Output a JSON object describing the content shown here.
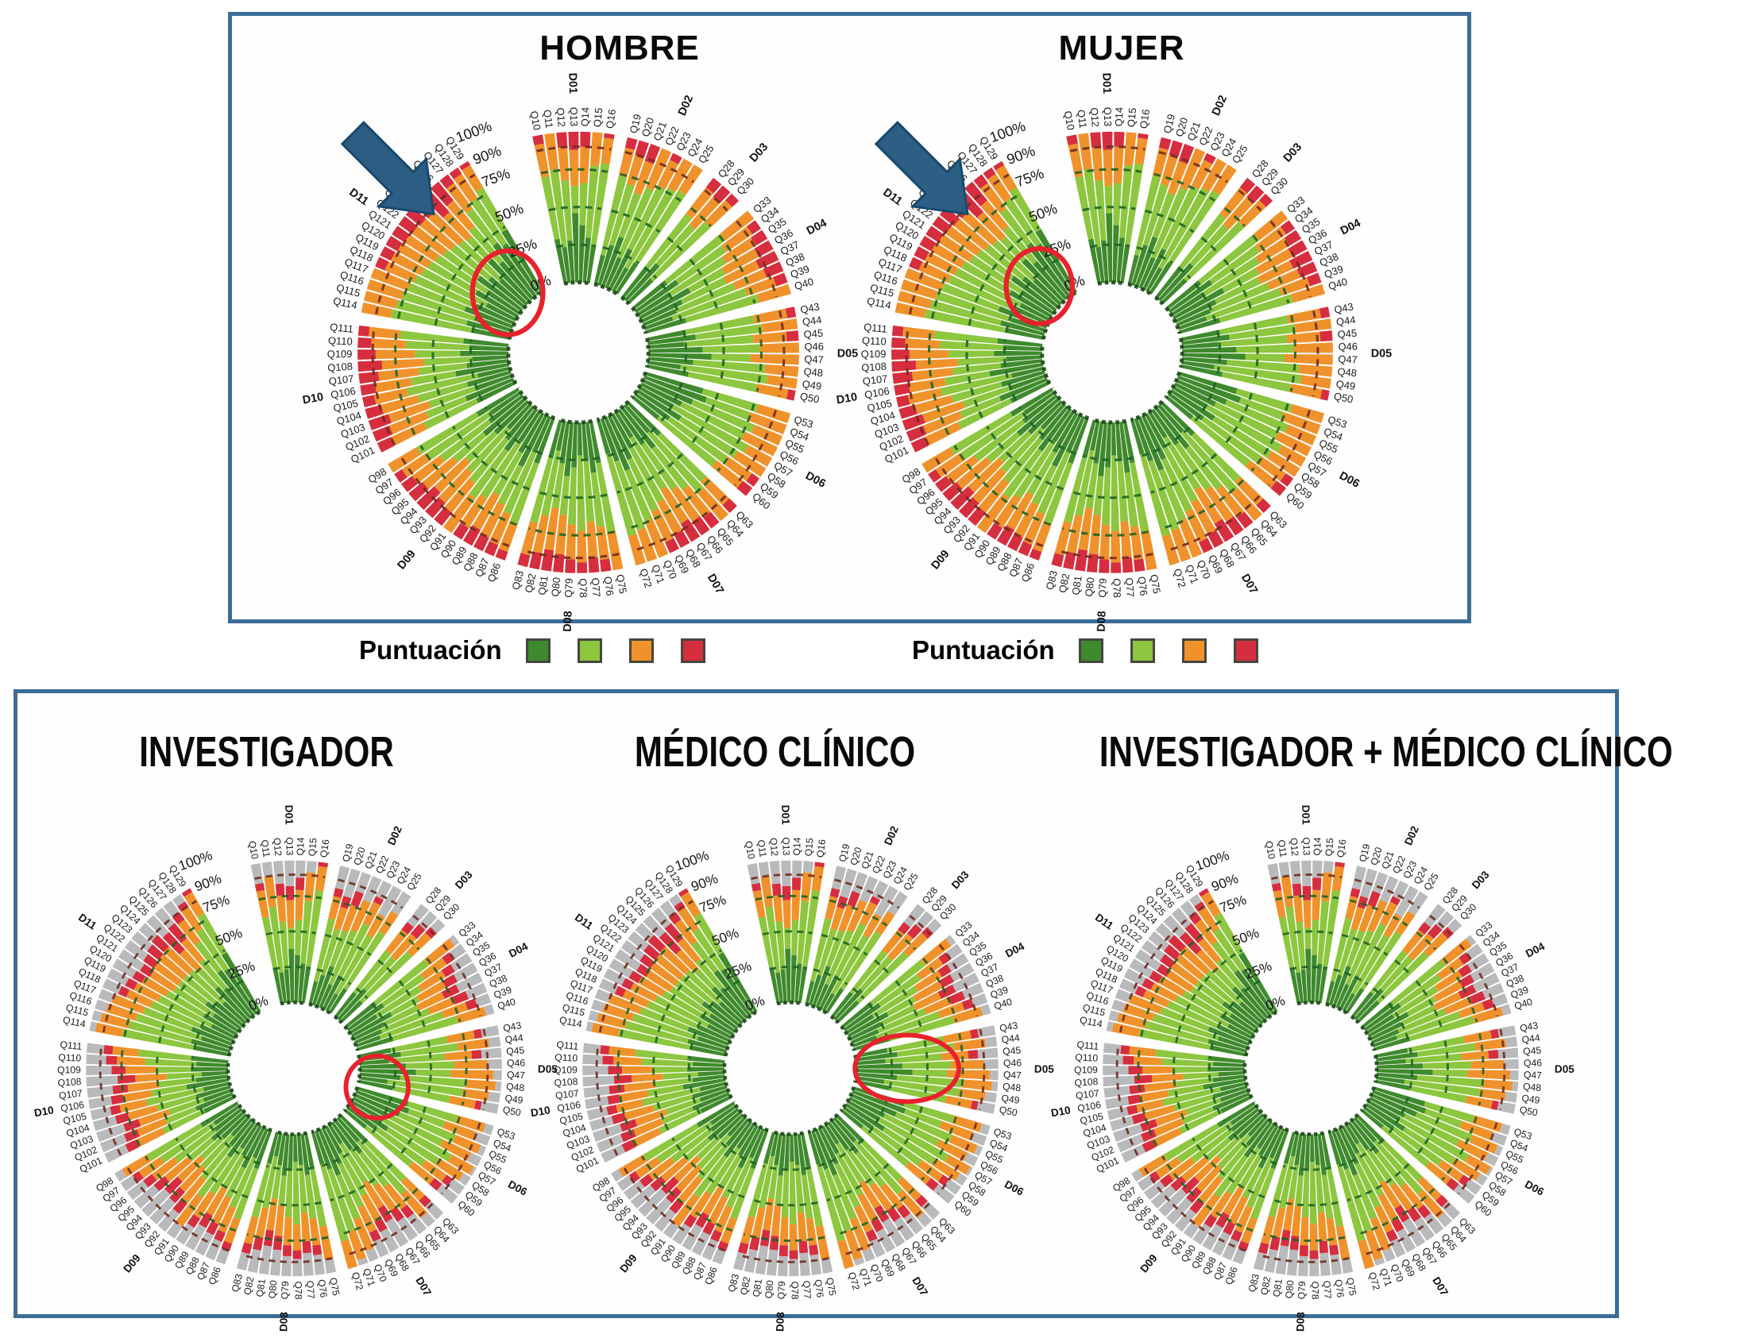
{
  "legend": {
    "label": "Puntuación"
  },
  "chart_data": {
    "type": "radial-stacked-bar",
    "ring_tick_labels": [
      "100%",
      "90%",
      "75%",
      "50%",
      "25%",
      "0%"
    ],
    "ring_gridlines_pct": [
      0,
      25,
      50,
      75,
      90
    ],
    "score_categories": [
      "score-1-dark-green",
      "score-2-light-green",
      "score-3-orange",
      "score-4-red"
    ],
    "palette": {
      "scores": [
        "#3f8a2d",
        "#8dc63f",
        "#f0922b",
        "#d62e3e"
      ],
      "gray": "#b9babc",
      "grid_green": "#1e6423",
      "grid_maroon": "#6f2d1f",
      "grid_base": "#1c4419",
      "annotation_red": "#e8222d",
      "arrow_blue": "#2c5d83",
      "arrow_stroke": "#17496e",
      "panel_border": "#3c6d96"
    },
    "domains": [
      {
        "id": "D01",
        "questions": [
          "Q10",
          "Q11",
          "Q12",
          "Q13",
          "Q14",
          "Q15",
          "Q16"
        ]
      },
      {
        "id": "D02",
        "questions": [
          "Q19",
          "Q20",
          "Q21",
          "Q22",
          "Q23",
          "Q24",
          "Q25"
        ]
      },
      {
        "id": "D03",
        "questions": [
          "Q28",
          "Q29",
          "Q30"
        ]
      },
      {
        "id": "D04",
        "questions": [
          "Q33",
          "Q34",
          "Q35",
          "Q36",
          "Q37",
          "Q38",
          "Q39",
          "Q40"
        ]
      },
      {
        "id": "D05",
        "questions": [
          "Q43",
          "Q44",
          "Q45",
          "Q46",
          "Q47",
          "Q48",
          "Q49",
          "Q50"
        ]
      },
      {
        "id": "D06",
        "questions": [
          "Q53",
          "Q54",
          "Q55",
          "Q56",
          "Q57",
          "Q58",
          "Q59",
          "Q60"
        ]
      },
      {
        "id": "D07",
        "questions": [
          "Q63",
          "Q64",
          "Q65",
          "Q66",
          "Q67",
          "Q68",
          "Q69",
          "Q70",
          "Q71",
          "Q72"
        ]
      },
      {
        "id": "D08",
        "questions": [
          "Q75",
          "Q76",
          "Q77",
          "Q78",
          "Q79",
          "Q80",
          "Q81",
          "Q82",
          "Q83"
        ]
      },
      {
        "id": "D09",
        "questions": [
          "Q86",
          "Q87",
          "Q88",
          "Q89",
          "Q90",
          "Q91",
          "Q92",
          "Q93",
          "Q94",
          "Q95",
          "Q96",
          "Q97",
          "Q98"
        ]
      },
      {
        "id": "D10",
        "questions": [
          "Q101",
          "Q102",
          "Q103",
          "Q104",
          "Q105",
          "Q106",
          "Q107",
          "Q108",
          "Q109",
          "Q110",
          "Q111"
        ]
      },
      {
        "id": "D11",
        "questions": [
          "Q114",
          "Q115",
          "Q116",
          "Q117",
          "Q118",
          "Q119",
          "Q120",
          "Q121",
          "Q122",
          "Q123",
          "Q124",
          "Q125",
          "Q126",
          "Q127",
          "Q128",
          "Q129"
        ]
      }
    ],
    "bar_values_columns": [
      "dark_green_end_pct",
      "light_green_end_pct",
      "orange_end_pct",
      "has_red_cap",
      "colored_end_pct_bottom_panel"
    ],
    "bar_values": {
      "D01": [
        [
          30,
          72,
          94,
          1,
          86
        ],
        [
          24,
          76,
          92,
          0,
          90
        ],
        [
          28,
          68,
          90,
          1,
          84
        ],
        [
          46,
          64,
          88,
          1,
          82
        ],
        [
          38,
          66,
          90,
          1,
          88
        ],
        [
          30,
          78,
          96,
          0,
          92
        ],
        [
          26,
          80,
          97,
          1,
          100
        ]
      ],
      "D02": [
        [
          20,
          74,
          93,
          1,
          84
        ],
        [
          28,
          70,
          90,
          1,
          80
        ],
        [
          35,
          66,
          88,
          1,
          86
        ],
        [
          22,
          72,
          92,
          0,
          82
        ],
        [
          30,
          76,
          95,
          1,
          88
        ],
        [
          18,
          78,
          96,
          0,
          78
        ],
        [
          24,
          80,
          97,
          0,
          84
        ]
      ],
      "D03": [
        [
          26,
          70,
          92,
          1,
          84
        ],
        [
          32,
          66,
          90,
          1,
          88
        ],
        [
          22,
          74,
          94,
          1,
          92
        ]
      ],
      "D04": [
        [
          28,
          76,
          95,
          0,
          96
        ],
        [
          34,
          72,
          93,
          1,
          90
        ],
        [
          26,
          68,
          91,
          1,
          86
        ],
        [
          38,
          64,
          89,
          1,
          84
        ],
        [
          30,
          62,
          86,
          1,
          82
        ],
        [
          24,
          66,
          88,
          1,
          86
        ],
        [
          20,
          72,
          92,
          1,
          90
        ],
        [
          28,
          78,
          96,
          0,
          94
        ]
      ],
      "D05": [
        [
          26,
          72,
          94,
          1,
          88
        ],
        [
          32,
          76,
          96,
          0,
          92
        ],
        [
          24,
          70,
          92,
          1,
          86
        ],
        [
          36,
          74,
          95,
          0,
          90
        ],
        [
          42,
          68,
          93,
          0,
          94
        ],
        [
          30,
          78,
          97,
          0,
          96
        ],
        [
          22,
          80,
          97,
          0,
          92
        ],
        [
          28,
          74,
          95,
          1,
          88
        ]
      ],
      "D06": [
        [
          40,
          78,
          96,
          0,
          94
        ],
        [
          44,
          74,
          95,
          0,
          90
        ],
        [
          36,
          80,
          97,
          0,
          96
        ],
        [
          30,
          76,
          95,
          0,
          92
        ],
        [
          26,
          82,
          97,
          0,
          98
        ],
        [
          34,
          78,
          96,
          0,
          94
        ],
        [
          28,
          74,
          94,
          1,
          90
        ],
        [
          22,
          70,
          92,
          1,
          86
        ]
      ],
      "D07": [
        [
          30,
          72,
          93,
          1,
          88
        ],
        [
          24,
          76,
          95,
          0,
          92
        ],
        [
          34,
          68,
          91,
          1,
          86
        ],
        [
          28,
          64,
          89,
          1,
          84
        ],
        [
          20,
          60,
          86,
          1,
          80
        ],
        [
          26,
          66,
          90,
          1,
          84
        ],
        [
          32,
          70,
          92,
          1,
          88
        ],
        [
          38,
          74,
          94,
          0,
          92
        ],
        [
          30,
          78,
          96,
          0,
          96
        ],
        [
          24,
          80,
          97,
          0,
          100
        ]
      ],
      "D08": [
        [
          28,
          74,
          94,
          0,
          90
        ],
        [
          34,
          70,
          92,
          1,
          86
        ],
        [
          26,
          66,
          90,
          1,
          84
        ],
        [
          22,
          72,
          93,
          1,
          88
        ],
        [
          30,
          68,
          91,
          1,
          86
        ],
        [
          36,
          62,
          88,
          1,
          82
        ],
        [
          28,
          58,
          86,
          1,
          80
        ],
        [
          20,
          64,
          89,
          1,
          84
        ],
        [
          26,
          70,
          92,
          1,
          88
        ]
      ],
      "D09": [
        [
          32,
          74,
          94,
          1,
          90
        ],
        [
          26,
          70,
          92,
          1,
          86
        ],
        [
          38,
          66,
          90,
          1,
          84
        ],
        [
          30,
          62,
          88,
          1,
          82
        ],
        [
          24,
          68,
          91,
          1,
          86
        ],
        [
          34,
          72,
          93,
          0,
          90
        ],
        [
          28,
          64,
          89,
          1,
          84
        ],
        [
          22,
          60,
          87,
          1,
          80
        ],
        [
          30,
          56,
          84,
          1,
          78
        ],
        [
          36,
          62,
          88,
          1,
          82
        ],
        [
          28,
          68,
          91,
          1,
          86
        ],
        [
          24,
          74,
          94,
          1,
          90
        ],
        [
          32,
          78,
          96,
          0,
          94
        ]
      ],
      "D10": [
        [
          28,
          66,
          90,
          1,
          84
        ],
        [
          34,
          62,
          88,
          1,
          82
        ],
        [
          26,
          58,
          86,
          1,
          80
        ],
        [
          30,
          64,
          89,
          1,
          84
        ],
        [
          22,
          70,
          92,
          1,
          86
        ],
        [
          36,
          66,
          90,
          1,
          84
        ],
        [
          28,
          60,
          87,
          1,
          82
        ],
        [
          24,
          56,
          84,
          1,
          78
        ],
        [
          32,
          62,
          88,
          1,
          82
        ],
        [
          26,
          68,
          91,
          1,
          86
        ],
        [
          30,
          72,
          93,
          1,
          88
        ]
      ],
      "D11": [
        [
          26,
          80,
          97,
          0,
          96
        ],
        [
          30,
          78,
          96,
          0,
          94
        ],
        [
          24,
          76,
          95,
          0,
          92
        ],
        [
          34,
          74,
          94,
          0,
          90
        ],
        [
          28,
          72,
          93,
          1,
          88
        ],
        [
          22,
          70,
          92,
          1,
          86
        ],
        [
          32,
          68,
          91,
          1,
          84
        ],
        [
          26,
          66,
          90,
          1,
          82
        ],
        [
          36,
          64,
          89,
          1,
          84
        ],
        [
          30,
          62,
          88,
          1,
          86
        ],
        [
          24,
          60,
          87,
          1,
          88
        ],
        [
          38,
          58,
          80,
          1,
          84
        ],
        [
          32,
          62,
          84,
          1,
          86
        ],
        [
          44,
          72,
          93,
          1,
          90
        ],
        [
          40,
          76,
          95,
          1,
          94
        ],
        [
          48,
          80,
          97,
          1,
          100
        ]
      ]
    },
    "charts": [
      {
        "id": "hombre",
        "title": "HOMBRE",
        "panel": "top",
        "gray_outer": false,
        "arrow": true,
        "red_circle": {
          "cx": -0.32,
          "cy": -0.27,
          "rx": 0.16,
          "ry": 0.19
        }
      },
      {
        "id": "mujer",
        "title": "MUJER",
        "panel": "top",
        "gray_outer": false,
        "arrow": true,
        "red_circle": {
          "cx": -0.33,
          "cy": -0.3,
          "rx": 0.15,
          "ry": 0.17
        }
      },
      {
        "id": "investigador",
        "title": "INVESTIGADOR",
        "panel": "bottom",
        "gray_outer": true,
        "arrow": false,
        "red_circle": {
          "cx": 0.4,
          "cy": 0.09,
          "rx": 0.15,
          "ry": 0.15
        }
      },
      {
        "id": "medico-clinico",
        "title": "MÉDICO CLÍNICO",
        "panel": "bottom",
        "gray_outer": true,
        "arrow": false,
        "red_circle": {
          "cx": 0.56,
          "cy": 0.0,
          "rx": 0.25,
          "ry": 0.16
        }
      },
      {
        "id": "investigador-medico-clinico",
        "title": "INVESTIGADOR + MÉDICO CLÍNICO",
        "panel": "bottom",
        "gray_outer": true,
        "arrow": false,
        "red_circle": null
      }
    ]
  }
}
